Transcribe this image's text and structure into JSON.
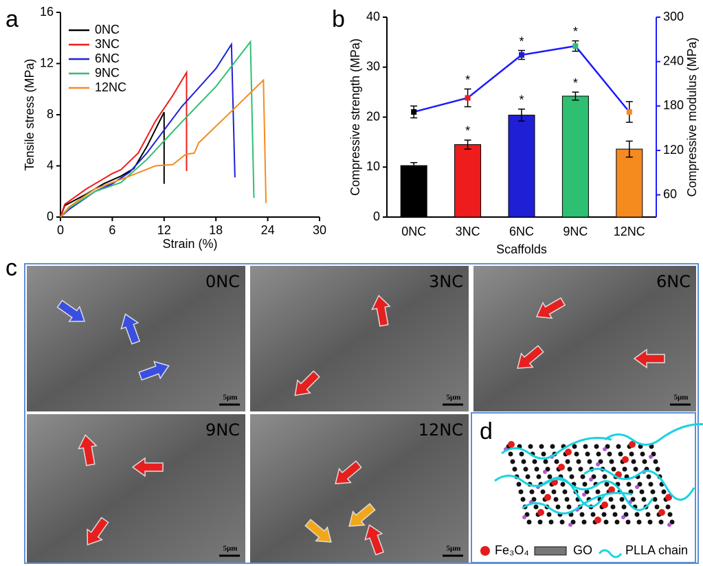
{
  "chart_data": [
    {
      "type": "line",
      "panel": "a",
      "xlabel": "Strain (%)",
      "ylabel": "Tensile stress (MPa)",
      "xlim": [
        0,
        30
      ],
      "xticks": [
        0,
        6,
        12,
        18,
        24,
        30
      ],
      "ylim": [
        0,
        16
      ],
      "yticks": [
        0,
        4,
        8,
        12,
        16
      ],
      "series": [
        {
          "name": "0NC",
          "color": "#000000",
          "x": [
            0,
            0.5,
            3,
            5,
            7,
            8.5,
            10,
            12,
            12
          ],
          "values": [
            0,
            0.9,
            1.8,
            2.6,
            3.2,
            3.8,
            5.5,
            8.2,
            2.6
          ]
        },
        {
          "name": "3NC",
          "color": "#ee1c1c",
          "x": [
            0,
            0.5,
            3,
            6,
            7,
            9,
            11,
            13,
            14.6,
            14.6
          ],
          "values": [
            0,
            1,
            2.2,
            3.4,
            3.7,
            5,
            7.5,
            9.5,
            11.3,
            3.6
          ]
        },
        {
          "name": "6NC",
          "color": "#1f1fd6",
          "x": [
            0,
            1,
            4,
            6,
            8,
            10,
            14,
            18,
            19.8,
            20.2
          ],
          "values": [
            0,
            0.6,
            2,
            2.6,
            3.5,
            5,
            8.6,
            11.6,
            13.5,
            3.1
          ]
        },
        {
          "name": "9NC",
          "color": "#2fbf71",
          "x": [
            0,
            1,
            4,
            7,
            10,
            14,
            18,
            22,
            22.4
          ],
          "values": [
            0,
            0.7,
            2,
            2.7,
            4.5,
            7.4,
            10.2,
            13.7,
            1.5
          ]
        },
        {
          "name": "12NC",
          "color": "#f58a1f",
          "x": [
            0,
            1,
            4,
            8,
            11,
            13,
            14.5,
            15.5,
            16,
            20,
            23.5,
            23.8
          ],
          "values": [
            0,
            0.8,
            2.2,
            3.2,
            4,
            4.1,
            4.9,
            5,
            5.8,
            8.4,
            10.7,
            1.1
          ]
        }
      ]
    },
    {
      "type": "bar",
      "panel": "b",
      "xlabel": "Scaffolds",
      "ylabel": "Compressive strength (MPa)",
      "y2label": "Compressive modulus (MPa)",
      "categories": [
        "0NC",
        "3NC",
        "6NC",
        "9NC",
        "12NC"
      ],
      "ylim": [
        0,
        40
      ],
      "yticks": [
        0,
        10,
        20,
        30,
        40
      ],
      "y2lim": [
        30,
        300
      ],
      "y2ticks": [
        60,
        120,
        180,
        240,
        300
      ],
      "y2color": "#1a1aff",
      "series": [
        {
          "type": "bar",
          "colors": [
            "#000000",
            "#ee1c1c",
            "#1f1fd6",
            "#2fbf71",
            "#f58a1f"
          ],
          "values": [
            10.3,
            14.5,
            20.4,
            24.2,
            13.6
          ],
          "errors": [
            0.6,
            0.9,
            1.2,
            0.8,
            1.6
          ],
          "significance": [
            null,
            "*",
            "*",
            "*",
            null
          ]
        },
        {
          "type": "line",
          "axis": "y2",
          "color": "#1a1aff",
          "marker_colors": [
            "#000000",
            "#ee1c1c",
            "#1f1fd6",
            "#2fbf71",
            "#f58a1f"
          ],
          "values": [
            172,
            191,
            249,
            261,
            172
          ],
          "errors": [
            8,
            12,
            6,
            7,
            14
          ],
          "significance": [
            null,
            "*",
            "*",
            "*",
            null
          ]
        }
      ]
    }
  ],
  "panel_c": {
    "label": "c",
    "panels": [
      {
        "label": "0NC",
        "scale": "5μm"
      },
      {
        "label": "3NC",
        "scale": "5μm"
      },
      {
        "label": "6NC",
        "scale": "5μm"
      },
      {
        "label": "9NC",
        "scale": "5μm"
      },
      {
        "label": "12NC",
        "scale": "5μm"
      }
    ]
  },
  "panel_d": {
    "label": "d",
    "legend": [
      "Fe₃O₄",
      "GO",
      "PLLA chain"
    ]
  }
}
